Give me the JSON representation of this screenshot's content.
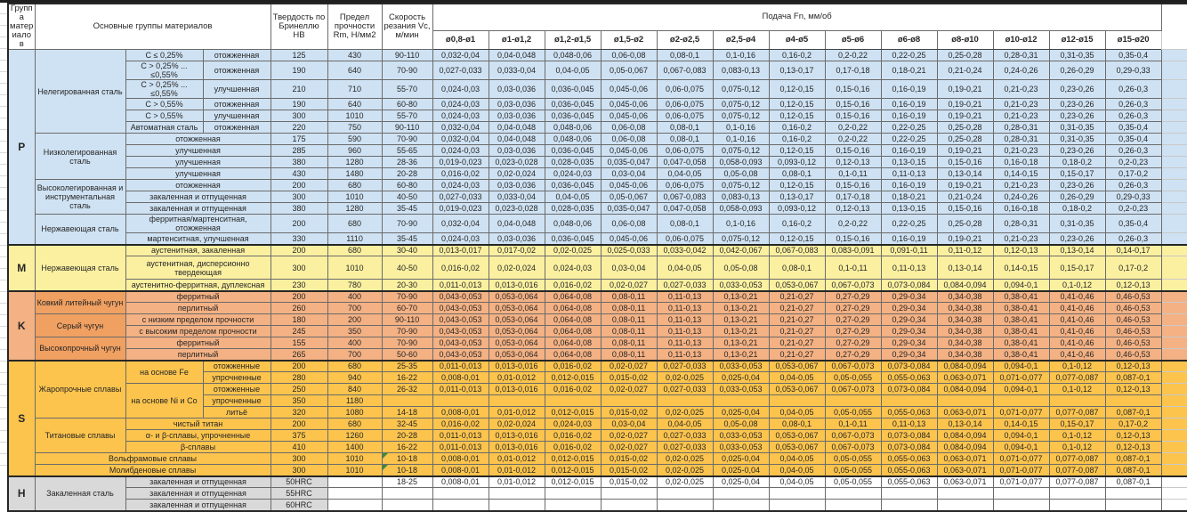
{
  "colors": {
    "p_band": "#cfe2f3",
    "m_band": "#fbf0a0",
    "k_band": "#f4b183",
    "k_label": "#f0a061",
    "s_band": "#fcc44d",
    "h_label": "#d9d9d9",
    "note_indicator": "#3c8a3c",
    "grid_line": "#6b6b6b"
  },
  "table": {
    "header": {
      "col_group": "Группа материалов",
      "col_main": "Основные группы материалов",
      "col_hb": "Твердость по Бринеллю HB",
      "col_rm": "Предел прочности Rm, Н/мм2",
      "col_vc": "Скорость резания Vc, м/мин",
      "feed_title": "Подача Fn, мм/об",
      "feed_cols": [
        "ø0,8-ø1",
        "ø1-ø1,2",
        "ø1,2-ø1,5",
        "ø1,5-ø2",
        "ø2-ø2,5",
        "ø2,5-ø4",
        "ø4-ø5",
        "ø5-ø6",
        "ø6-ø8",
        "ø8-ø10",
        "ø10-ø12",
        "ø12-ø15",
        "ø15-ø20"
      ]
    },
    "feed_patterns": {
      "A": [
        "0,032-0,04",
        "0,04-0,048",
        "0,048-0,06",
        "0,06-0,08",
        "0,08-0,1",
        "0,1-0,16",
        "0,16-0,2",
        "0,2-0,22",
        "0,22-0,25",
        "0,25-0,28",
        "0,28-0,31",
        "0,31-0,35",
        "0,35-0,4"
      ],
      "B": [
        "0,027-0,033",
        "0,033-0,04",
        "0,04-0,05",
        "0,05-0,067",
        "0,067-0,083",
        "0,083-0,13",
        "0,13-0,17",
        "0,17-0,18",
        "0,18-0,21",
        "0,21-0,24",
        "0,24-0,26",
        "0,26-0,29",
        "0,29-0,33"
      ],
      "C": [
        "0,024-0,03",
        "0,03-0,036",
        "0,036-0,045",
        "0,045-0,06",
        "0,06-0,075",
        "0,075-0,12",
        "0,12-0,15",
        "0,15-0,16",
        "0,16-0,19",
        "0,19-0,21",
        "0,21-0,23",
        "0,23-0,26",
        "0,26-0,3"
      ],
      "D": [
        "0,019-0,023",
        "0,023-0,028",
        "0,028-0,035",
        "0,035-0,047",
        "0,047-0,058",
        "0,058-0,093",
        "0,093-0,12",
        "0,12-0,13",
        "0,13-0,15",
        "0,15-0,16",
        "0,16-0,18",
        "0,18-0,2",
        "0,2-0,23"
      ],
      "E": [
        "0,016-0,02",
        "0,02-0,024",
        "0,024-0,03",
        "0,03-0,04",
        "0,04-0,05",
        "0,05-0,08",
        "0,08-0,1",
        "0,1-0,11",
        "0,11-0,13",
        "0,13-0,14",
        "0,14-0,15",
        "0,15-0,17",
        "0,17-0,2"
      ],
      "K": [
        "0,043-0,053",
        "0,053-0,064",
        "0,064-0,08",
        "0,08-0,11",
        "0,11-0,13",
        "0,13-0,21",
        "0,21-0,27",
        "0,27-0,29",
        "0,29-0,34",
        "0,34-0,38",
        "0,38-0,41",
        "0,41-0,46",
        "0,46-0,53"
      ],
      "M1": [
        "0,013-0,017",
        "0,017-0,02",
        "0,02-0,025",
        "0,025-0,033",
        "0,033-0,042",
        "0,042-0,067",
        "0,067-0,083",
        "0,083-0,091",
        "0,091-0,11",
        "0,11-0,12",
        "0,12-0,13",
        "0,13-0,14",
        "0,14-0,17"
      ],
      "G": [
        "0,011-0,013",
        "0,013-0,016",
        "0,016-0,02",
        "0,02-0,027",
        "0,027-0,033",
        "0,033-0,053",
        "0,053-0,067",
        "0,067-0,073",
        "0,073-0,084",
        "0,084-0,094",
        "0,094-0,1",
        "0,1-0,12",
        "0,12-0,13"
      ],
      "S2": [
        "0,008-0,01",
        "0,01-0,012",
        "0,012-0,015",
        "0,015-0,02",
        "0,02-0,025",
        "0,025-0,04",
        "0,04-0,05",
        "0,05-0,055",
        "0,055-0,063",
        "0,063-0,071",
        "0,071-0,077",
        "0,077-0,087",
        "0,087-0,1"
      ],
      "X": [
        "",
        "",
        "",
        "",
        "",
        "",
        "",
        "",
        "",
        "",
        "",
        "",
        ""
      ]
    },
    "rows": [
      {
        "grp": "p",
        "cells": [
          [
            "P",
            "g",
            1,
            15
          ],
          [
            "Нелегированная сталь",
            "m",
            1,
            6
          ],
          [
            "C ≤ 0,25%",
            "s"
          ],
          [
            "отожженная",
            "c"
          ]
        ],
        "hb": "125",
        "rm": "430",
        "vc": "90-110",
        "feeds": "A"
      },
      {
        "grp": "p",
        "cells": [
          [
            "C > 0,25% ... ≤0,55%",
            "s"
          ],
          [
            "отожженная",
            "c"
          ]
        ],
        "hb": "190",
        "rm": "640",
        "vc": "70-90",
        "feeds": "B"
      },
      {
        "grp": "p",
        "cells": [
          [
            "C > 0,25% ... ≤0,55%",
            "s"
          ],
          [
            "улучшенная",
            "c"
          ]
        ],
        "hb": "210",
        "rm": "710",
        "vc": "55-70",
        "feeds": "C"
      },
      {
        "grp": "p",
        "cells": [
          [
            "C > 0,55%",
            "s"
          ],
          [
            "отожженная",
            "c"
          ]
        ],
        "hb": "190",
        "rm": "640",
        "vc": "60-80",
        "feeds": "C"
      },
      {
        "grp": "p",
        "cells": [
          [
            "C > 0,55%",
            "s"
          ],
          [
            "улучшенная",
            "c"
          ]
        ],
        "hb": "300",
        "rm": "1010",
        "vc": "55-70",
        "feeds": "C"
      },
      {
        "grp": "p",
        "cells": [
          [
            "Автоматная сталь",
            "s"
          ],
          [
            "отожженная",
            "c"
          ]
        ],
        "hb": "220",
        "rm": "750",
        "vc": "90-110",
        "feeds": "A"
      },
      {
        "grp": "p",
        "cells": [
          [
            "Низколегированная сталь",
            "m",
            1,
            4
          ],
          [
            "отожженная",
            "c",
            2
          ]
        ],
        "hb": "175",
        "rm": "590",
        "vc": "70-90",
        "feeds": "A"
      },
      {
        "grp": "p",
        "cells": [
          [
            "улучшенная",
            "c",
            2
          ]
        ],
        "hb": "285",
        "rm": "960",
        "vc": "55-65",
        "feeds": "C"
      },
      {
        "grp": "p",
        "cells": [
          [
            "улучшенная",
            "c",
            2
          ]
        ],
        "hb": "380",
        "rm": "1280",
        "vc": "28-36",
        "feeds": "D"
      },
      {
        "grp": "p",
        "cells": [
          [
            "улучшенная",
            "c",
            2
          ]
        ],
        "hb": "430",
        "rm": "1480",
        "vc": "20-28",
        "feeds": "E"
      },
      {
        "grp": "p",
        "cells": [
          [
            "Высоколегированная и инструментальная сталь",
            "m",
            1,
            3
          ],
          [
            "отожженная",
            "c",
            2
          ]
        ],
        "hb": "200",
        "rm": "680",
        "vc": "60-80",
        "feeds": "C"
      },
      {
        "grp": "p",
        "cells": [
          [
            "закаленная и отпущенная",
            "c",
            2
          ]
        ],
        "hb": "300",
        "rm": "1010",
        "vc": "40-50",
        "feeds": "B"
      },
      {
        "grp": "p",
        "cells": [
          [
            "закаленная и отпущенная",
            "c",
            2
          ]
        ],
        "hb": "380",
        "rm": "1280",
        "vc": "35-45",
        "feeds": "D"
      },
      {
        "grp": "p",
        "cells": [
          [
            "Нержавеющая сталь",
            "m",
            1,
            2
          ],
          [
            "ферритная/мартенситная, отожженная",
            "c",
            2
          ]
        ],
        "hb": "200",
        "rm": "680",
        "vc": "70-90",
        "feeds": "A"
      },
      {
        "grp": "p",
        "cells": [
          [
            "мартенситная, улучшенная",
            "c",
            2
          ]
        ],
        "hb": "330",
        "rm": "1110",
        "vc": "35-45",
        "feeds": "C"
      },
      {
        "grp": "m",
        "band": 1,
        "cells": [
          [
            "M",
            "g",
            1,
            3
          ],
          [
            "Нержавеющая сталь",
            "m",
            1,
            3
          ],
          [
            "аустенитная, закаленная",
            "c",
            2
          ]
        ],
        "hb": "200",
        "rm": "680",
        "vc": "30-40",
        "feeds": "M1"
      },
      {
        "grp": "m",
        "h": 26,
        "cells": [
          [
            "аустенитная, дисперсионно твердеющая",
            "c",
            2
          ]
        ],
        "hb": "300",
        "rm": "1010",
        "vc": "40-50",
        "feeds": "E"
      },
      {
        "grp": "m",
        "cells": [
          [
            "аустенитно-ферритная, дуплексная",
            "c",
            2
          ]
        ],
        "hb": "230",
        "rm": "780",
        "vc": "20-30",
        "feeds": "G"
      },
      {
        "grp": "k",
        "band": 1,
        "cells": [
          [
            "K",
            "g",
            1,
            6
          ],
          [
            "Ковкий литейный чугун",
            "m",
            1,
            2
          ],
          [
            "ферритный",
            "c",
            2
          ]
        ],
        "hb": "200",
        "rm": "400",
        "vc": "70-90",
        "feeds": "K"
      },
      {
        "grp": "k",
        "cells": [
          [
            "перлитный",
            "c",
            2
          ]
        ],
        "hb": "260",
        "rm": "700",
        "vc": "60-70",
        "feeds": "K"
      },
      {
        "grp": "k",
        "cells": [
          [
            "Серый чугун",
            "m",
            1,
            2
          ],
          [
            "с низким пределом прочности",
            "c",
            2
          ]
        ],
        "hb": "180",
        "rm": "200",
        "vc": "90-110",
        "feeds": "K"
      },
      {
        "grp": "k",
        "cells": [
          [
            "с высоким пределом прочности",
            "c",
            2
          ]
        ],
        "hb": "245",
        "rm": "350",
        "vc": "70-90",
        "feeds": "K"
      },
      {
        "grp": "k",
        "cells": [
          [
            "Высокопрочный чугун",
            "m",
            1,
            2
          ],
          [
            "ферритный",
            "c",
            2
          ]
        ],
        "hb": "155",
        "rm": "400",
        "vc": "70-90",
        "feeds": "K"
      },
      {
        "grp": "k",
        "cells": [
          [
            "перлитный",
            "c",
            2
          ]
        ],
        "hb": "265",
        "rm": "700",
        "vc": "50-60",
        "feeds": "K"
      },
      {
        "grp": "s",
        "band": 1,
        "cells": [
          [
            "S",
            "g",
            1,
            10
          ],
          [
            "Жаропрочные сплавы",
            "m",
            1,
            5
          ],
          [
            "на основе Fe",
            "s",
            1,
            2
          ],
          [
            "отожженные",
            "c"
          ]
        ],
        "hb": "200",
        "rm": "680",
        "vc": "25-35",
        "feeds": "G"
      },
      {
        "grp": "s",
        "cells": [
          [
            "упрочненные",
            "c"
          ]
        ],
        "hb": "280",
        "rm": "940",
        "vc": "16-22",
        "feeds": "S2"
      },
      {
        "grp": "s",
        "cells": [
          [
            "на основе Ni и Co",
            "s",
            1,
            3
          ],
          [
            "отожженные",
            "c"
          ]
        ],
        "hb": "250",
        "rm": "840",
        "vc": "26-32",
        "feeds": "G"
      },
      {
        "grp": "s",
        "cells": [
          [
            "упрочненные",
            "c"
          ]
        ],
        "hb": "350",
        "rm": "1180",
        "vc": "",
        "feeds": "X"
      },
      {
        "grp": "s",
        "cells": [
          [
            "литьё",
            "c"
          ]
        ],
        "hb": "320",
        "rm": "1080",
        "vc": "14-18",
        "feeds": "S2"
      },
      {
        "grp": "s",
        "cells": [
          [
            "Титановые сплавы",
            "m",
            1,
            3
          ],
          [
            "чистый титан",
            "c",
            2
          ]
        ],
        "hb": "200",
        "rm": "680",
        "vc": "32-45",
        "feeds": "E"
      },
      {
        "grp": "s",
        "cells": [
          [
            "α- и β-сплавы, упрочненные",
            "c",
            2
          ]
        ],
        "hb": "375",
        "rm": "1260",
        "vc": "20-28",
        "feeds": "G"
      },
      {
        "grp": "s",
        "cells": [
          [
            "β-сплавы",
            "c",
            2
          ]
        ],
        "hb": "410",
        "rm": "1400",
        "vc": "16-22",
        "feeds": "G"
      },
      {
        "grp": "s",
        "cells": [
          [
            "Вольфрамовые сплавы",
            "m",
            3,
            1
          ]
        ],
        "hb": "300",
        "rm": "1010",
        "vc": "10-18",
        "vc_note": true,
        "feeds": "S2"
      },
      {
        "grp": "s",
        "cells": [
          [
            "Молибденовые сплавы",
            "m",
            3,
            1
          ]
        ],
        "hb": "300",
        "rm": "1010",
        "vc": "10-18",
        "vc_note": true,
        "feeds": "S2"
      },
      {
        "grp": "h",
        "band": 1,
        "cells": [
          [
            "H",
            "g",
            1,
            3
          ],
          [
            "Закаленная сталь",
            "m",
            1,
            3
          ],
          [
            "закаленная и отпущенная",
            "c",
            2
          ]
        ],
        "hb": "50HRC",
        "rm": "",
        "vc": "18-25",
        "feeds": "S2"
      },
      {
        "grp": "h",
        "cells": [
          [
            "закаленная и отпущенная",
            "c",
            2
          ]
        ],
        "hb": "55HRC",
        "rm": "",
        "vc": "",
        "feeds": "X"
      },
      {
        "grp": "h",
        "cells": [
          [
            "закаленная и отпущенная",
            "c",
            2
          ]
        ],
        "hb": "60HRC",
        "rm": "",
        "vc": "",
        "feeds": "X"
      }
    ]
  }
}
